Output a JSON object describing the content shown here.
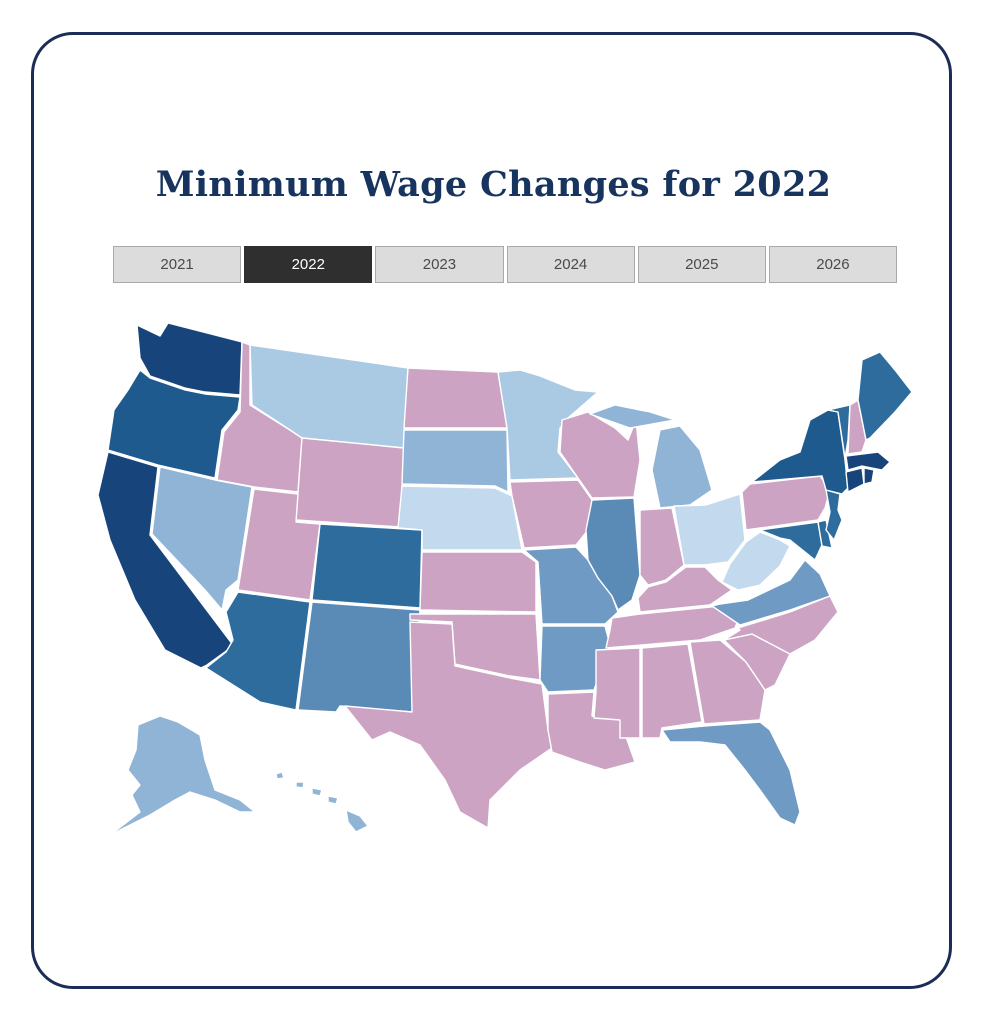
{
  "title": "Minimum Wage Changes for 2022",
  "year_tabs": [
    {
      "label": "2021",
      "active": false
    },
    {
      "label": "2022",
      "active": true
    },
    {
      "label": "2023",
      "active": false
    },
    {
      "label": "2024",
      "active": false
    },
    {
      "label": "2025",
      "active": false
    },
    {
      "label": "2026",
      "active": false
    }
  ],
  "colors": {
    "pink": "#cda3c3",
    "navy": "#17447a",
    "dark_blue": "#1f5a8f",
    "blue": "#2e6c9d",
    "steel": "#5a8ab6",
    "light_steel": "#6f9ac3",
    "sky": "#8fb4d6",
    "pale": "#aac9e3",
    "palest": "#c3d9ee"
  },
  "states": {
    "WA": "navy",
    "OR": "dark_blue",
    "CA": "navy",
    "NV": "sky",
    "ID": "pink",
    "MT": "pale",
    "WY": "pink",
    "UT": "pink",
    "AZ": "blue",
    "CO": "blue",
    "NM": "steel",
    "ND": "pink",
    "SD": "sky",
    "NE": "palest",
    "KS": "pink",
    "OK": "pink",
    "TX": "pink",
    "MN": "pale",
    "IA": "pink",
    "MO": "light_steel",
    "AR": "light_steel",
    "LA": "pink",
    "WI": "pink",
    "IL": "steel",
    "MI": "sky",
    "IN": "pink",
    "OH": "palest",
    "KY": "pink",
    "TN": "pink",
    "MS": "pink",
    "AL": "pink",
    "GA": "pink",
    "FL": "light_steel",
    "SC": "pink",
    "NC": "pink",
    "VA": "light_steel",
    "WV": "palest",
    "MD": "blue",
    "DE": "blue",
    "PA": "pink",
    "NJ": "blue",
    "NY": "dark_blue",
    "VT": "blue",
    "NH": "pink",
    "ME": "blue",
    "MA": "navy",
    "CT": "navy",
    "RI": "navy",
    "AK": "sky",
    "HI": "sky"
  }
}
